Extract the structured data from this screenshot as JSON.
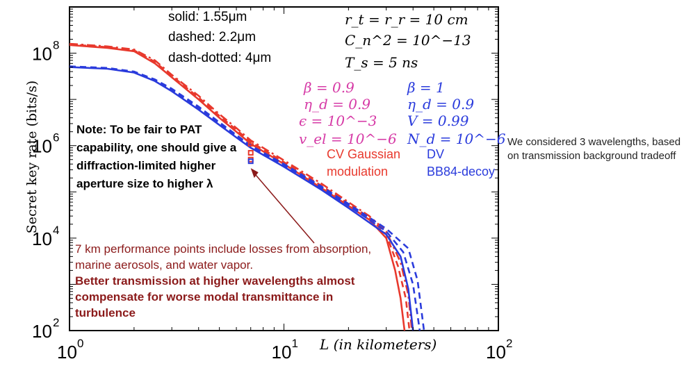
{
  "chart_data": {
    "type": "line",
    "xscale": "log",
    "yscale": "log",
    "xlim": [
      1,
      100
    ],
    "ylim": [
      100,
      1000000000
    ],
    "xlabel": "L (in kilometers)",
    "ylabel": "Secret key rate (bits/s)",
    "x_ticks": [
      {
        "value": 1,
        "label": "10",
        "exp": "0"
      },
      {
        "value": 10,
        "label": "10",
        "exp": "1"
      },
      {
        "value": 100,
        "label": "10",
        "exp": "2"
      }
    ],
    "y_ticks": [
      {
        "value": 100,
        "label": "10",
        "exp": "2"
      },
      {
        "value": 10000,
        "label": "10",
        "exp": "4"
      },
      {
        "value": 1000000,
        "label": "10",
        "exp": "6"
      },
      {
        "value": 100000000,
        "label": "10",
        "exp": "8"
      }
    ],
    "series": [
      {
        "color": "#e8392d",
        "style": "solid",
        "points": [
          [
            1,
            150000000.0
          ],
          [
            1.5,
            130000000.0
          ],
          [
            2,
            110000000.0
          ],
          [
            2.5,
            60000000.0
          ],
          [
            3,
            30000000.0
          ],
          [
            4,
            10000000.0
          ],
          [
            5,
            4000000.0
          ],
          [
            6,
            2000000.0
          ],
          [
            7,
            1100000.0
          ],
          [
            10,
            400000.0
          ],
          [
            15,
            120000.0
          ],
          [
            20,
            50000.0
          ],
          [
            25,
            25000.0
          ],
          [
            30,
            10000.0
          ],
          [
            33,
            2000.0
          ],
          [
            35,
            500.0
          ],
          [
            36.5,
            100.0
          ]
        ]
      },
      {
        "color": "#e8392d",
        "style": "dashed",
        "points": [
          [
            1,
            155000000.0
          ],
          [
            1.5,
            135000000.0
          ],
          [
            2,
            115000000.0
          ],
          [
            2.5,
            65000000.0
          ],
          [
            3,
            32000000.0
          ],
          [
            4,
            11000000.0
          ],
          [
            5,
            4400000.0
          ],
          [
            6,
            2200000.0
          ],
          [
            7,
            1200000.0
          ],
          [
            10,
            440000.0
          ],
          [
            15,
            135000.0
          ],
          [
            20,
            55000.0
          ],
          [
            25,
            28000.0
          ],
          [
            30,
            12000.0
          ],
          [
            34,
            2500.0
          ],
          [
            37,
            500.0
          ],
          [
            38.5,
            100.0
          ]
        ]
      },
      {
        "color": "#e8392d",
        "style": "dashdot",
        "points": [
          [
            1,
            160000000.0
          ],
          [
            1.5,
            140000000.0
          ],
          [
            2,
            120000000.0
          ],
          [
            2.5,
            70000000.0
          ],
          [
            3,
            34000000.0
          ],
          [
            4,
            12000000.0
          ],
          [
            5,
            4800000.0
          ],
          [
            6,
            2400000.0
          ],
          [
            7,
            1300000.0
          ],
          [
            10,
            480000.0
          ],
          [
            15,
            150000.0
          ],
          [
            20,
            60000.0
          ],
          [
            25,
            30000.0
          ],
          [
            30,
            14000.0
          ],
          [
            35,
            3000.0
          ],
          [
            38,
            600.0
          ],
          [
            39.5,
            100.0
          ]
        ]
      },
      {
        "color": "#2a3bdc",
        "style": "solid",
        "points": [
          [
            1,
            50000000.0
          ],
          [
            1.5,
            46000000.0
          ],
          [
            2,
            38000000.0
          ],
          [
            2.5,
            25000000.0
          ],
          [
            3,
            15000000.0
          ],
          [
            4,
            6000000.0
          ],
          [
            5,
            2800000.0
          ],
          [
            6,
            1500000.0
          ],
          [
            7,
            900000.0
          ],
          [
            10,
            350000.0
          ],
          [
            15,
            110000.0
          ],
          [
            20,
            45000.0
          ],
          [
            30,
            12000.0
          ],
          [
            35,
            4000.0
          ],
          [
            38,
            800.0
          ],
          [
            40,
            100.0
          ]
        ]
      },
      {
        "color": "#2a3bdc",
        "style": "dashed",
        "points": [
          [
            1,
            51000000.0
          ],
          [
            1.5,
            47000000.0
          ],
          [
            2,
            39000000.0
          ],
          [
            2.5,
            26000000.0
          ],
          [
            3,
            16000000.0
          ],
          [
            4,
            6500000.0
          ],
          [
            5,
            3000000.0
          ],
          [
            6,
            1600000.0
          ],
          [
            7,
            950000.0
          ],
          [
            10,
            380000.0
          ],
          [
            15,
            120000.0
          ],
          [
            20,
            50000.0
          ],
          [
            30,
            14000.0
          ],
          [
            36,
            5000.0
          ],
          [
            40,
            1000.0
          ],
          [
            43,
            100.0
          ]
        ]
      },
      {
        "color": "#2a3bdc",
        "style": "dashed",
        "points": [
          [
            1,
            52000000.0
          ],
          [
            1.5,
            48000000.0
          ],
          [
            2,
            40000000.0
          ],
          [
            2.5,
            27000000.0
          ],
          [
            3,
            17000000.0
          ],
          [
            4,
            7000000.0
          ],
          [
            5,
            3200000.0
          ],
          [
            6,
            1700000.0
          ],
          [
            7,
            1000000.0
          ],
          [
            10,
            400000.0
          ],
          [
            15,
            130000.0
          ],
          [
            20,
            55000.0
          ],
          [
            30,
            16000.0
          ],
          [
            38,
            6000.0
          ],
          [
            42,
            1200.0
          ],
          [
            45,
            100.0
          ]
        ]
      }
    ],
    "marker_points": [
      {
        "x": 7,
        "y": 1100000.0,
        "color": "#e8392d"
      },
      {
        "x": 7,
        "y": 700000.0,
        "color": "#e8392d"
      },
      {
        "x": 7,
        "y": 500000.0,
        "color": "#e8392d"
      },
      {
        "x": 7,
        "y": 460000.0,
        "color": "#2a3bdc"
      }
    ],
    "annotations": {
      "legend_lines": [
        "solid: 1.55μm",
        "dashed: 2.2μm",
        "dash-dotted: 4μm"
      ],
      "params_top": [
        "r_t = r_r = 10 cm",
        "C_n^2 = 10^−13",
        "T_s = 5 ns"
      ],
      "cv_params": [
        "β = 0.9",
        "η_d = 0.9",
        "ϵ = 10^−3",
        "v_el = 10^−6"
      ],
      "dv_params": [
        "β = 1",
        "η_d = 0.9",
        "V = 0.99",
        "N_d = 10^−6"
      ],
      "cv_label": [
        "CV Gaussian",
        "modulation"
      ],
      "dv_label": [
        "DV",
        "BB84-decoy"
      ],
      "side_note": "We considered 3 wavelengths, based on transmission background tradeoff",
      "left_note": "Note: To be fair to PAT capability, one should give a diffraction-limited higher aperture size to higher λ",
      "bottom_note_regular": "7 km performance points include losses from absorption, marine aerosols, and water vapor.",
      "bottom_note_bold": "Better transmission at higher wavelengths almost compensate for worse modal transmittance in turbulence"
    }
  },
  "colors": {
    "cv": "#e8392d",
    "dv": "#2a3bdc",
    "params_magenta": "#d63aa6",
    "note_dark_red": "#8b1a1a"
  }
}
